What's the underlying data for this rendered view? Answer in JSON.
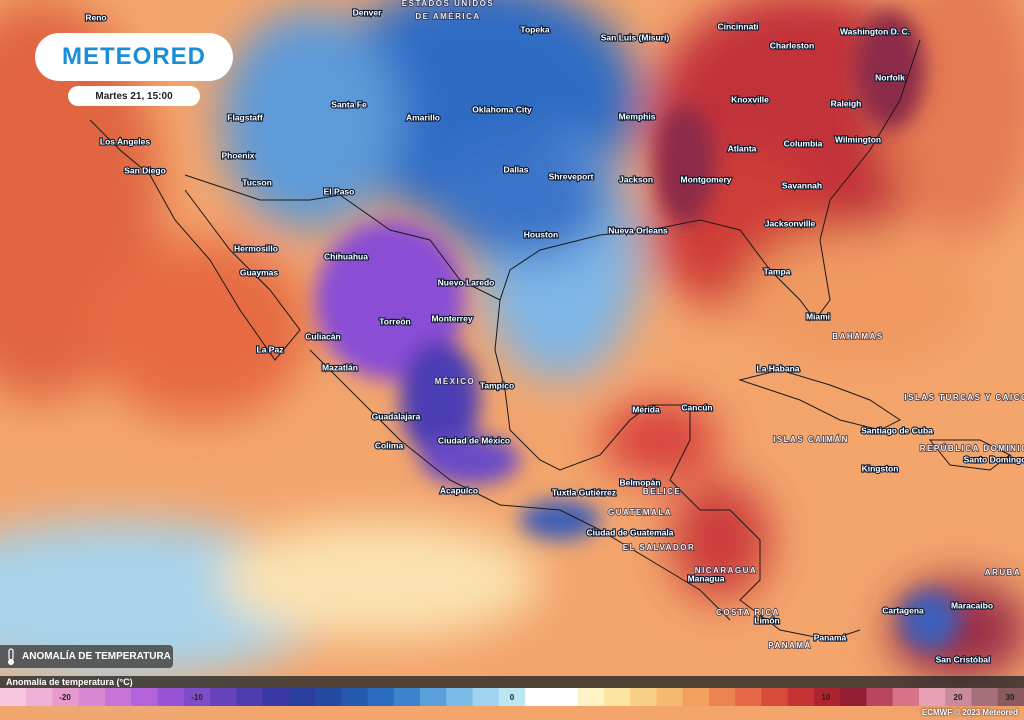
{
  "header": {
    "logo": "METEORED",
    "date": "Martes 21, 15:00"
  },
  "layer": "ANOMALÍA DE TEMPERATURA",
  "legend": {
    "title": "Anomalía de temperatura (°C)",
    "ticks": [
      -20,
      -10,
      0,
      10,
      20,
      30
    ],
    "colors": [
      "#f7c6dd",
      "#eeb0d6",
      "#e59ad0",
      "#d988d4",
      "#c774d8",
      "#b262db",
      "#9a55d6",
      "#7f4cca",
      "#6743bd",
      "#4e3cb1",
      "#3a38a5",
      "#2b3d9c",
      "#234a9f",
      "#2459ad",
      "#2a6cbe",
      "#3d84cf",
      "#59a0dc",
      "#7bbbe8",
      "#9fd3f0",
      "#bde6f3",
      "#ffffff",
      "#ffffff",
      "#fdf3c6",
      "#fbe3a1",
      "#f9cf85",
      "#f6b971",
      "#f2a060",
      "#ec8452",
      "#e46846",
      "#d74a3c",
      "#c63334",
      "#ad2430",
      "#931d33",
      "#b8465f",
      "#d6738b",
      "#e7a1b4",
      "#c98a9c",
      "#a86f7d",
      "#8a5a5e"
    ]
  },
  "places": [
    "Reno",
    "Denver",
    "Topeka",
    "San Luis (Misuri)",
    "Cincinnati",
    "Charleston",
    "Washington D. C.",
    "Norfolk",
    "Knoxville",
    "Raleigh",
    "Memphis",
    "Oklahoma City",
    "Amarillo",
    "Santa Fe",
    "Flagstaff",
    "Los Angeles",
    "Phoenix",
    "San Diego",
    "Tucson",
    "El Paso",
    "Dallas",
    "Shreveport",
    "Jackson",
    "Montgomery",
    "Atlanta",
    "Columbia",
    "Wilmington",
    "Savannah",
    "Jacksonville",
    "Houston",
    "Nueva Orleans",
    "Tampa",
    "Miami",
    "Hermosillo",
    "Chihuahua",
    "Guaymas",
    "Nuevo Laredo",
    "Monterrey",
    "Torreón",
    "Culiacán",
    "La Paz",
    "Mazatlán",
    "Tampico",
    "Guadalajara",
    "Ciudad de México",
    "Colima",
    "Acapulco",
    "Tuxtla Gutiérrez",
    "Mérida",
    "Cancún",
    "Belmopán",
    "Ciudad de Guatemala",
    "Managua",
    "Limón",
    "Panamá",
    "La Habana",
    "Santiago de Cuba",
    "Kingston",
    "Santo Domingo",
    "Cartagena",
    "Maracaibo",
    "San Cristóbal"
  ],
  "countries": [
    "ESTADOS UNIDOS",
    "DE AMÉRICA",
    "MÉXICO",
    "BELICE",
    "GUATEMALA",
    "EL SALVADOR",
    "NICARAGUA",
    "COSTA RICA",
    "PANAMÁ",
    "BAHAMAS",
    "ISLAS CAIMÁN",
    "ISLAS TURCAS Y CAICOS",
    "REPÚBLICA DOMINICANA",
    "ARUBA"
  ],
  "credit": "ECMWF © 2023 Meteored"
}
